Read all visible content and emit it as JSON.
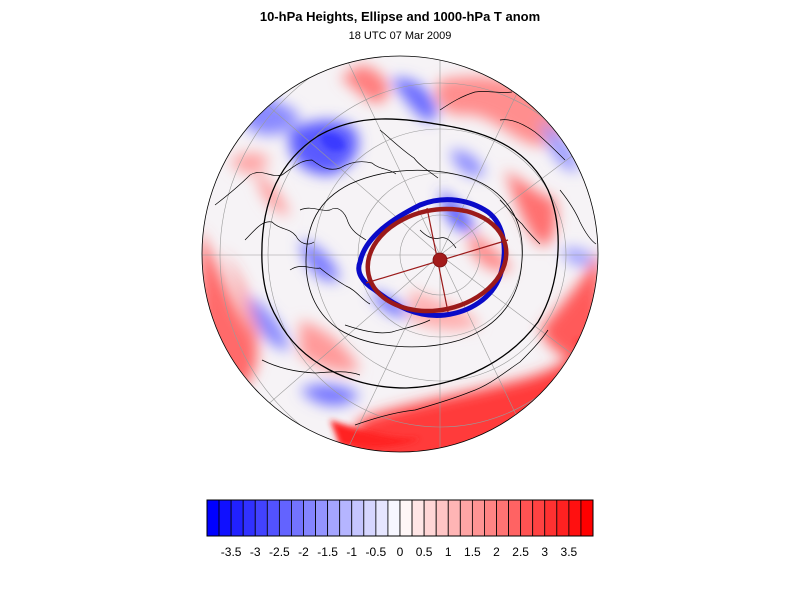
{
  "title": "10-hPa Heights, Ellipse and 1000-hPa T anom",
  "subtitle": "18 UTC 07 Mar 2009",
  "colors": {
    "negative_max": "#0000ff",
    "positive_max": "#ff0000",
    "neutral": "#ffffff",
    "contour": "#000000",
    "ellipse_blue": "#0a0ac8",
    "ellipse_red": "#9b1a1a",
    "center_dot": "#a31b1b"
  },
  "map": {
    "projection": "north-polar-stereographic",
    "field": "1000-hPa T anom",
    "contours": "10-hPa Heights",
    "features": [
      "coastlines",
      "graticule",
      "ellipse",
      "vortex-center"
    ]
  },
  "colorbar": {
    "levels": [
      -4.0,
      -3.75,
      -3.5,
      -3.25,
      -3.0,
      -2.75,
      -2.5,
      -2.25,
      -2.0,
      -1.75,
      -1.5,
      -1.25,
      -1.0,
      -0.75,
      -0.5,
      -0.25,
      0,
      0.25,
      0.5,
      0.75,
      1.0,
      1.25,
      1.5,
      1.75,
      2.0,
      2.25,
      2.5,
      2.75,
      3.0,
      3.25,
      3.5,
      3.75,
      4.0
    ],
    "tick_labels": [
      "-3.5",
      "-3",
      "-2.5",
      "-2",
      "-1.5",
      "-1",
      "-0.5",
      "0",
      "0.5",
      "1",
      "1.5",
      "2",
      "2.5",
      "3",
      "3.5"
    ]
  }
}
